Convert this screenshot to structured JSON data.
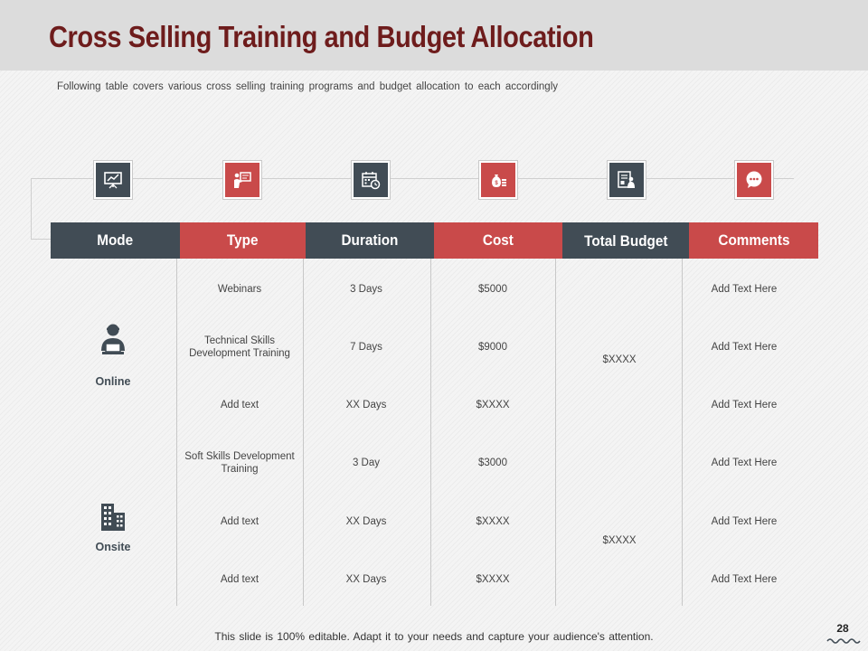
{
  "slide": {
    "title": "Cross Selling Training and Budget Allocation",
    "subtitle": "Following table covers various cross selling training programs and budget allocation to each accordingly",
    "footer": "This slide is 100% editable. Adapt it to your needs and capture your audience's attention.",
    "page_number": "28"
  },
  "colors": {
    "dark": "#414c55",
    "red": "#c94a4a",
    "title": "#6e1c1c"
  },
  "header_icons": [
    "presentation-chart-icon",
    "trainer-board-icon",
    "calendar-clock-icon",
    "money-bag-icon",
    "budget-document-icon",
    "chat-bubble-icon"
  ],
  "columns": [
    "Mode",
    "Type",
    "Duration",
    "Cost",
    "Total Budget",
    "Comments"
  ],
  "modes": [
    {
      "label": "Online",
      "icon": "person-laptop-icon",
      "total_budget": "$XXXX"
    },
    {
      "label": "Onsite",
      "icon": "office-building-icon",
      "total_budget": "$XXXX"
    }
  ],
  "rows": [
    {
      "type": "Webinars",
      "duration": "3 Days",
      "cost": "$5000",
      "comment": "Add Text Here"
    },
    {
      "type": "Technical Skills Development Training",
      "duration": "7 Days",
      "cost": "$9000",
      "comment": "Add Text Here"
    },
    {
      "type": "Add text",
      "duration": "XX Days",
      "cost": "$XXXX",
      "comment": "Add Text Here"
    },
    {
      "type": "Soft Skills Development Training",
      "duration": "3 Day",
      "cost": "$3000",
      "comment": "Add Text Here"
    },
    {
      "type": "Add text",
      "duration": "XX Days",
      "cost": "$XXXX",
      "comment": "Add Text Here"
    },
    {
      "type": "Add text",
      "duration": "XX Days",
      "cost": "$XXXX",
      "comment": "Add Text Here"
    }
  ]
}
